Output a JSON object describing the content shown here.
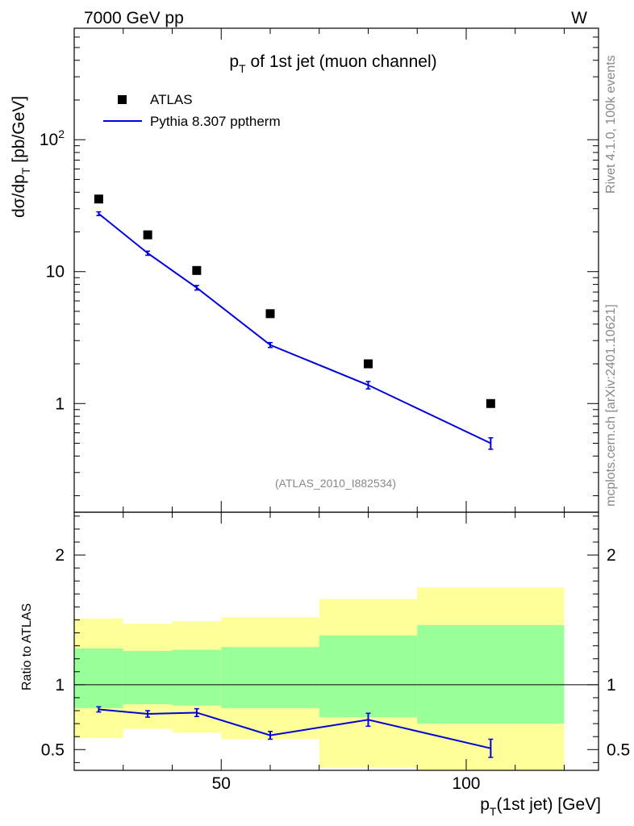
{
  "header": {
    "energy": "7000 GeV pp",
    "process": "W"
  },
  "side_label": {
    "rivet": "Rivet 4.1.0,  100k events",
    "source": "mcplots.cern.ch [arXiv:2401.10621]"
  },
  "chart_data": {
    "type": "line",
    "title_main": "p",
    "title_sub": "T",
    "title_rest": " of 1st jet (muon channel)",
    "analysis_id": "(ATLAS_2010_I882534)",
    "xlabel_main": "p",
    "xlabel_sub": "T",
    "xlabel_rest": "(1st jet) [GeV]",
    "ylabel_main": "dσ/dp",
    "ylabel_sub": "T",
    "ylabel_rest": " [pb/GeV]",
    "ratio_ylabel": "Ratio to ATLAS",
    "xlim": [
      20,
      127
    ],
    "ylim": [
      0.15,
      700
    ],
    "ratio_ylim": [
      0.34,
      2.33
    ],
    "x_ticks": [
      {
        "value": 50,
        "label": "50"
      },
      {
        "value": 100,
        "label": "100"
      }
    ],
    "y_ticks": [
      {
        "value": 1,
        "label": "1"
      },
      {
        "value": 10,
        "label": "10"
      },
      {
        "value": 100,
        "label": "10",
        "sup": "2"
      }
    ],
    "ratio_ticks": [
      {
        "value": 0.5,
        "label": "0.5"
      },
      {
        "value": 1,
        "label": "1"
      },
      {
        "value": 2,
        "label": "2"
      }
    ],
    "legend": {
      "data_label": "ATLAS",
      "mc_label": "Pythia 8.307 pptherm",
      "placement": "top-left"
    },
    "colors": {
      "data": "#000000",
      "mc": "#0000dd",
      "band_stat": "#99ff99",
      "band_total": "#ffff99"
    },
    "data_points": [
      {
        "x": 25,
        "y": 35.5
      },
      {
        "x": 35,
        "y": 19
      },
      {
        "x": 45,
        "y": 10.2
      },
      {
        "x": 60,
        "y": 4.8
      },
      {
        "x": 80,
        "y": 2.0
      },
      {
        "x": 105,
        "y": 1.0
      }
    ],
    "mc_points": [
      {
        "x": 25,
        "y": 27.5,
        "err": 0.9
      },
      {
        "x": 35,
        "y": 13.8,
        "err": 0.5
      },
      {
        "x": 45,
        "y": 7.55,
        "err": 0.3
      },
      {
        "x": 60,
        "y": 2.78,
        "err": 0.12
      },
      {
        "x": 80,
        "y": 1.38,
        "err": 0.09
      },
      {
        "x": 105,
        "y": 0.5,
        "err": 0.05
      }
    ],
    "bands": [
      {
        "x_lo": 20,
        "x_hi": 30,
        "total_lo": 0.59,
        "total_hi": 1.51,
        "stat_lo": 0.82,
        "stat_hi": 1.28
      },
      {
        "x_lo": 30,
        "x_hi": 40,
        "total_lo": 0.66,
        "total_hi": 1.47,
        "stat_lo": 0.85,
        "stat_hi": 1.26
      },
      {
        "x_lo": 40,
        "x_hi": 50,
        "total_lo": 0.63,
        "total_hi": 1.49,
        "stat_lo": 0.84,
        "stat_hi": 1.27
      },
      {
        "x_lo": 50,
        "x_hi": 70,
        "total_lo": 0.58,
        "total_hi": 1.52,
        "stat_lo": 0.82,
        "stat_hi": 1.29
      },
      {
        "x_lo": 70,
        "x_hi": 90,
        "total_lo": 0.36,
        "total_hi": 1.66,
        "stat_lo": 0.75,
        "stat_hi": 1.38
      },
      {
        "x_lo": 90,
        "x_hi": 120,
        "total_lo": 0.34,
        "total_hi": 1.75,
        "stat_lo": 0.7,
        "stat_hi": 1.46
      }
    ],
    "ratio_points": [
      {
        "x": 25,
        "y": 0.81,
        "err": 0.02
      },
      {
        "x": 35,
        "y": 0.775,
        "err": 0.025
      },
      {
        "x": 45,
        "y": 0.785,
        "err": 0.03
      },
      {
        "x": 60,
        "y": 0.61,
        "err": 0.03
      },
      {
        "x": 80,
        "y": 0.73,
        "err": 0.05
      },
      {
        "x": 105,
        "y": 0.51,
        "err": 0.07
      }
    ]
  }
}
